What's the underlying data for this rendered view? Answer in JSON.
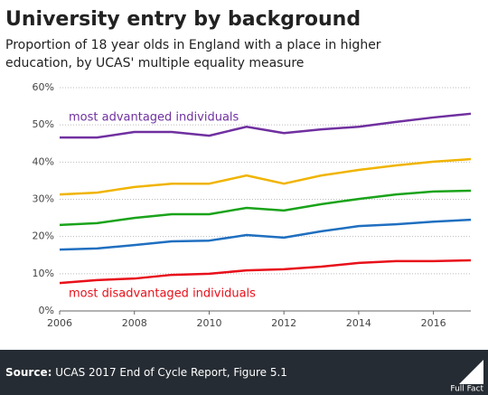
{
  "chart_data": {
    "type": "line",
    "title": "University entry by background",
    "subtitle": [
      "Proportion of 18 year olds in England with a place in higher",
      "education, by UCAS' multiple equality measure"
    ],
    "x": [
      2006,
      2007,
      2008,
      2009,
      2010,
      2011,
      2012,
      2013,
      2014,
      2015,
      2016,
      2017
    ],
    "xlim": [
      2006,
      2017
    ],
    "xticks": [
      2006,
      2008,
      2010,
      2012,
      2014,
      2016
    ],
    "ylim": [
      0,
      60
    ],
    "yticks": [
      {
        "value": 0,
        "label": "0%"
      },
      {
        "value": 10,
        "label": "10%"
      },
      {
        "value": 20,
        "label": "20%"
      },
      {
        "value": 30,
        "label": "30%"
      },
      {
        "value": 40,
        "label": "40%"
      },
      {
        "value": 50,
        "label": "50%"
      },
      {
        "value": 60,
        "label": "60%"
      }
    ],
    "grid": true,
    "series": [
      {
        "color": "#7030a0",
        "values": [
          46.6,
          46.6,
          48.1,
          48.1,
          47.1,
          49.5,
          47.8,
          48.8,
          49.5,
          50.8,
          52.0,
          53.0
        ]
      },
      {
        "color": "#f0b400",
        "values": [
          31.3,
          31.8,
          33.3,
          34.2,
          34.2,
          36.4,
          34.2,
          36.4,
          37.9,
          39.1,
          40.1,
          40.8
        ]
      },
      {
        "color": "#1aa31a",
        "values": [
          23.1,
          23.6,
          25.0,
          26.0,
          26.0,
          27.7,
          27.0,
          28.7,
          30.1,
          31.3,
          32.1,
          32.3
        ]
      },
      {
        "color": "#1f6fc0",
        "values": [
          16.5,
          16.8,
          17.7,
          18.7,
          18.9,
          20.4,
          19.7,
          21.4,
          22.8,
          23.3,
          24.0,
          24.5
        ]
      },
      {
        "color": "#e8101a",
        "values": [
          7.5,
          8.3,
          8.7,
          9.7,
          10.0,
          10.9,
          11.2,
          11.9,
          12.9,
          13.4,
          13.4,
          13.6
        ]
      }
    ],
    "annotations": [
      {
        "text": "most advantaged individuals",
        "color": "#7030a0"
      },
      {
        "text": "most disadvantaged individuals",
        "color": "#e8101a"
      }
    ]
  },
  "footer": {
    "source_label": "Source:",
    "source_text": "UCAS 2017 End of Cycle Report, Figure 5.1",
    "logo": "Full Fact"
  }
}
